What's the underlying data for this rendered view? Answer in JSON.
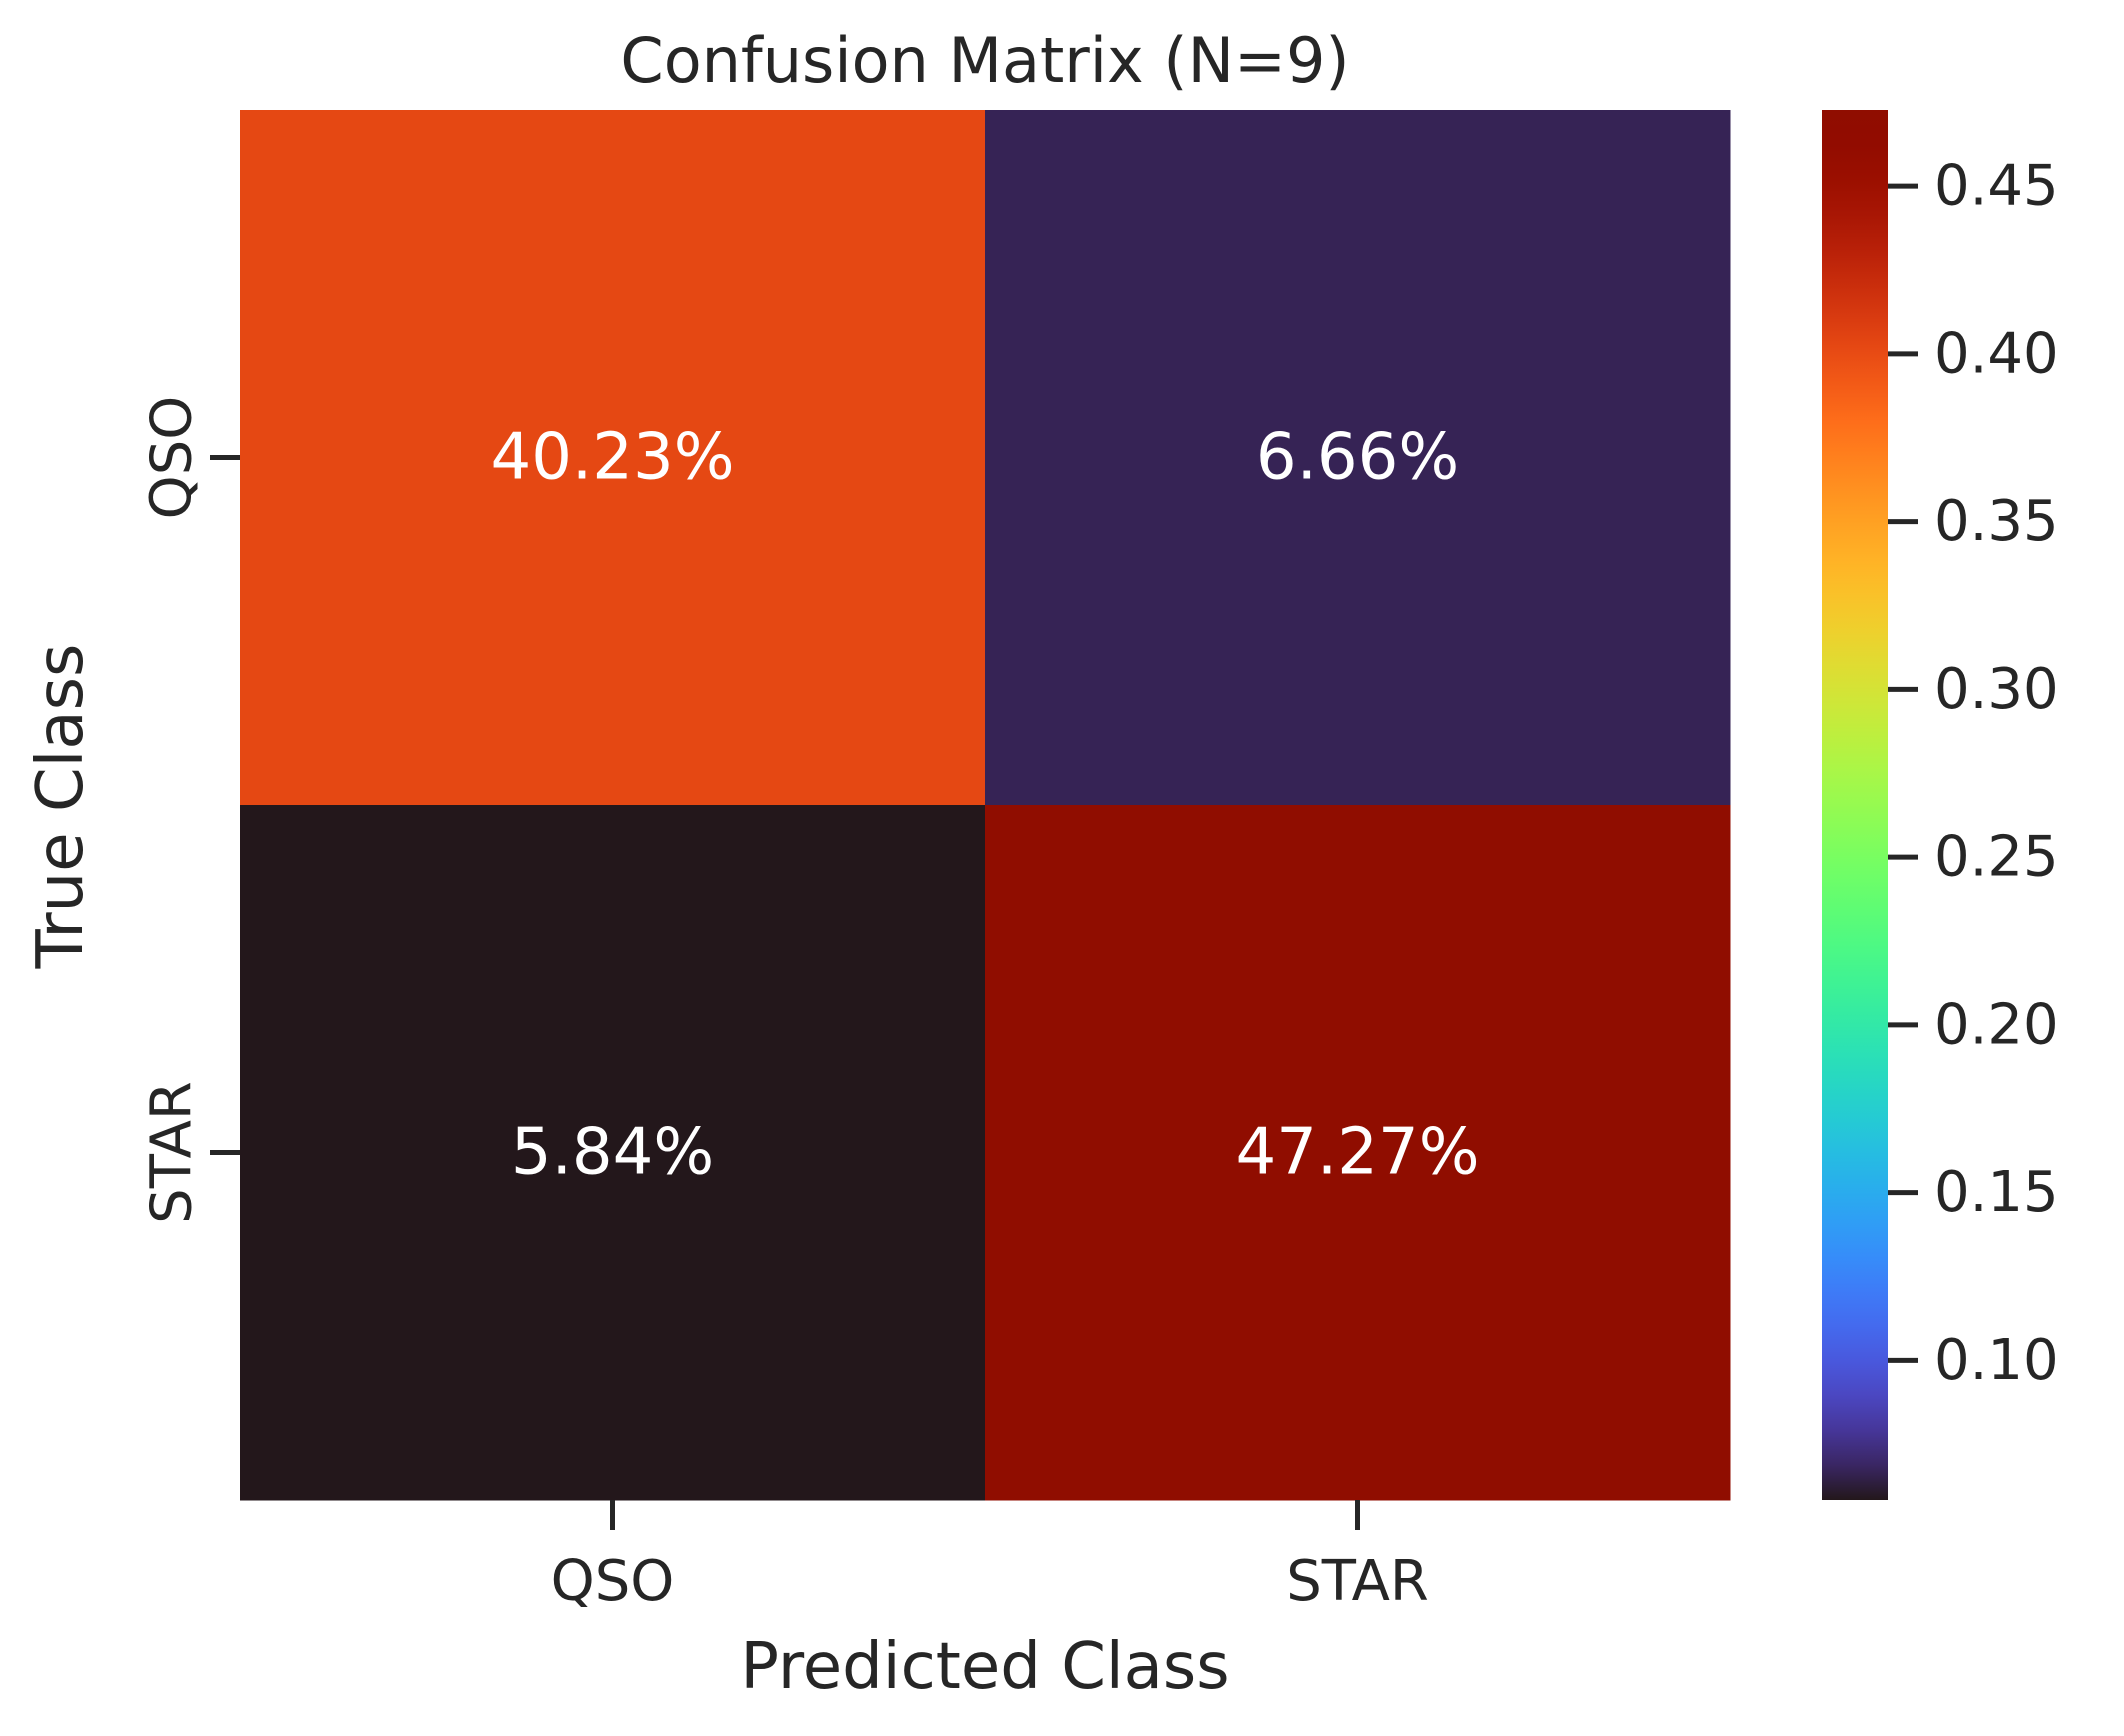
{
  "chart_data": {
    "type": "heatmap",
    "title": "Confusion Matrix (N=9)",
    "xlabel": "Predicted Class",
    "ylabel": "True Class",
    "x_categories": [
      "QSO",
      "STAR"
    ],
    "y_categories": [
      "QSO",
      "STAR"
    ],
    "values": [
      [
        0.4023,
        0.0666
      ],
      [
        0.0584,
        0.4727
      ]
    ],
    "cell_labels": [
      [
        "40.23%",
        "6.66%"
      ],
      [
        "5.84%",
        "47.27%"
      ]
    ],
    "colormap": "turbo",
    "colorbar": {
      "range": [
        0.0584,
        0.4727
      ],
      "ticks": [
        0.1,
        0.15,
        0.2,
        0.25,
        0.3,
        0.35,
        0.4,
        0.45
      ],
      "tick_labels": [
        "0.10",
        "0.15",
        "0.20",
        "0.25",
        "0.30",
        "0.35",
        "0.40",
        "0.45"
      ]
    },
    "colors": {
      "text": "#262626",
      "annotation": "#ffffff"
    }
  }
}
